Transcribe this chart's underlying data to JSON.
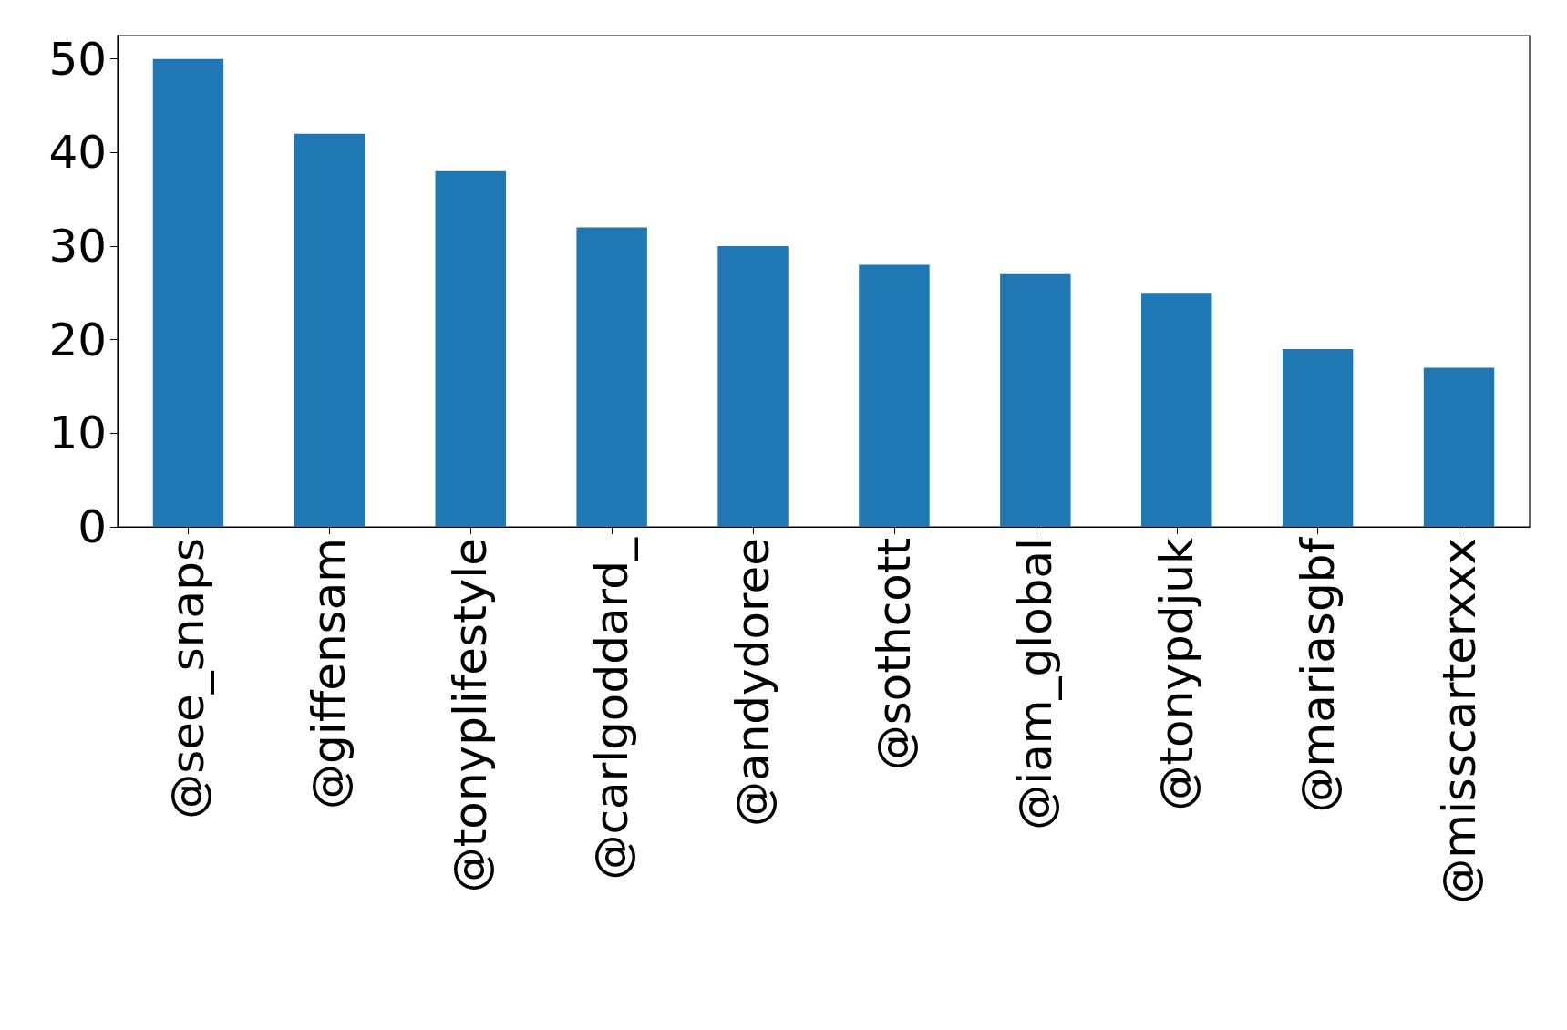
{
  "chart_data": {
    "type": "bar",
    "categories": [
      "@see_snaps",
      "@giffensam",
      "@tonyplifestyle",
      "@carlgoddard_",
      "@andydoree",
      "@sothcott",
      "@iam_global",
      "@tonypdjuk",
      "@mariasgbf",
      "@misscarterxxx"
    ],
    "values": [
      50,
      42,
      38,
      32,
      30,
      28,
      27,
      25,
      19,
      17
    ],
    "color": "#1f77b4",
    "ylim": [
      0,
      52.5
    ],
    "yticks": [
      0,
      10,
      20,
      30,
      40,
      50
    ]
  }
}
